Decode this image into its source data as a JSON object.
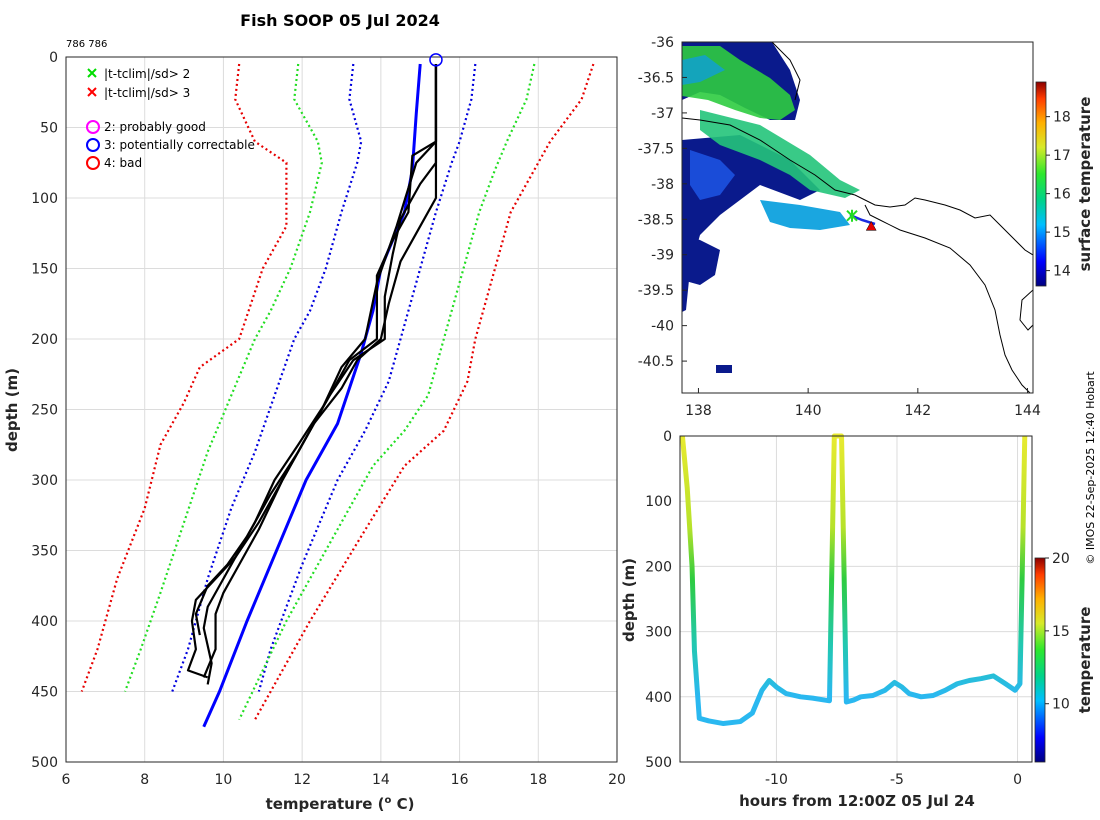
{
  "chart_data": [
    {
      "id": "profile",
      "type": "line",
      "title": "Fish SOOP 05 Jul 2024",
      "subtitle": "786 786",
      "xlabel": "temperature (",
      "xlabel_sup": "o",
      "xlabel_end": " C)",
      "ylabel": "depth (m)",
      "xlim": [
        6,
        20
      ],
      "ylim": [
        0,
        500
      ],
      "y_reversed": true,
      "xticks": [
        6,
        8,
        10,
        12,
        14,
        16,
        18,
        20
      ],
      "yticks": [
        0,
        50,
        100,
        150,
        200,
        250,
        300,
        350,
        400,
        450,
        500
      ],
      "grid": true,
      "legend": {
        "items": [
          {
            "marker": "x",
            "color": "#00dd00",
            "label": "|t-tclim|/sd> 2"
          },
          {
            "marker": "x",
            "color": "#ff0000",
            "label": "|t-tclim|/sd> 3"
          },
          {
            "marker": "o",
            "color": "#ff00ff",
            "label": "2: probably good"
          },
          {
            "marker": "o",
            "color": "#0000ff",
            "label": "3: potentially correctable"
          },
          {
            "marker": "o",
            "color": "#ff0000",
            "label": "4: bad"
          }
        ]
      },
      "climatology_series": [
        {
          "name": "clim -3sd",
          "color": "#e60000",
          "style": "dotted",
          "points": [
            [
              10.4,
              5
            ],
            [
              10.3,
              30
            ],
            [
              10.8,
              60
            ],
            [
              11.6,
              75
            ],
            [
              11.6,
              120
            ],
            [
              11.0,
              150
            ],
            [
              10.7,
              175
            ],
            [
              10.4,
              200
            ],
            [
              9.4,
              220
            ],
            [
              9.0,
              245
            ],
            [
              8.4,
              275
            ],
            [
              8.0,
              320
            ],
            [
              7.3,
              370
            ],
            [
              6.8,
              420
            ],
            [
              6.4,
              450
            ]
          ]
        },
        {
          "name": "clim -2sd",
          "color": "#22dd22",
          "style": "dotted",
          "points": [
            [
              11.9,
              5
            ],
            [
              11.8,
              30
            ],
            [
              12.4,
              60
            ],
            [
              12.5,
              75
            ],
            [
              12.2,
              110
            ],
            [
              11.7,
              150
            ],
            [
              11.2,
              180
            ],
            [
              10.8,
              200
            ],
            [
              10.2,
              240
            ],
            [
              9.6,
              280
            ],
            [
              9.0,
              330
            ],
            [
              8.4,
              380
            ],
            [
              7.9,
              420
            ],
            [
              7.5,
              450
            ]
          ]
        },
        {
          "name": "clim -1sd",
          "color": "#0000dd",
          "style": "dotted",
          "points": [
            [
              13.3,
              5
            ],
            [
              13.2,
              30
            ],
            [
              13.5,
              60
            ],
            [
              13.4,
              75
            ],
            [
              13.0,
              110
            ],
            [
              12.6,
              150
            ],
            [
              12.2,
              180
            ],
            [
              11.8,
              200
            ],
            [
              11.3,
              240
            ],
            [
              10.8,
              280
            ],
            [
              10.2,
              320
            ],
            [
              9.6,
              370
            ],
            [
              9.1,
              420
            ],
            [
              8.7,
              450
            ]
          ]
        },
        {
          "name": "clim +1sd",
          "color": "#0000dd",
          "style": "dotted",
          "points": [
            [
              16.4,
              5
            ],
            [
              16.3,
              30
            ],
            [
              16.0,
              60
            ],
            [
              15.8,
              75
            ],
            [
              15.4,
              110
            ],
            [
              15.0,
              150
            ],
            [
              14.6,
              190
            ],
            [
              14.2,
              230
            ],
            [
              13.6,
              265
            ],
            [
              12.9,
              300
            ],
            [
              12.0,
              360
            ],
            [
              11.2,
              420
            ],
            [
              10.9,
              450
            ]
          ]
        },
        {
          "name": "clim +2sd",
          "color": "#22dd22",
          "style": "dotted",
          "points": [
            [
              17.9,
              5
            ],
            [
              17.7,
              30
            ],
            [
              17.2,
              60
            ],
            [
              16.9,
              80
            ],
            [
              16.5,
              110
            ],
            [
              16.0,
              160
            ],
            [
              15.6,
              200
            ],
            [
              15.2,
              240
            ],
            [
              14.6,
              265
            ],
            [
              13.8,
              290
            ],
            [
              12.8,
              340
            ],
            [
              11.6,
              400
            ],
            [
              10.4,
              470
            ]
          ]
        },
        {
          "name": "clim +3sd",
          "color": "#e60000",
          "style": "dotted",
          "points": [
            [
              19.4,
              5
            ],
            [
              19.1,
              30
            ],
            [
              18.3,
              60
            ],
            [
              17.9,
              80
            ],
            [
              17.3,
              110
            ],
            [
              16.9,
              150
            ],
            [
              16.4,
              200
            ],
            [
              16.2,
              230
            ],
            [
              15.6,
              265
            ],
            [
              14.6,
              290
            ],
            [
              13.5,
              340
            ],
            [
              12.2,
              400
            ],
            [
              10.8,
              470
            ]
          ]
        },
        {
          "name": "clim mean",
          "color": "#0000ff",
          "style": "solid",
          "points": [
            [
              15.0,
              5
            ],
            [
              14.9,
              40
            ],
            [
              14.8,
              80
            ],
            [
              14.6,
              110
            ],
            [
              14.0,
              150
            ],
            [
              13.8,
              180
            ],
            [
              13.5,
              210
            ],
            [
              12.9,
              260
            ],
            [
              12.1,
              300
            ],
            [
              11.5,
              340
            ],
            [
              10.6,
              400
            ],
            [
              9.9,
              450
            ],
            [
              9.5,
              475
            ]
          ]
        }
      ],
      "profiles": [
        {
          "name": "cast 1",
          "color": "#000000",
          "points": [
            [
              15.4,
              5
            ],
            [
              15.4,
              60
            ],
            [
              14.8,
              70
            ],
            [
              14.7,
              110
            ],
            [
              14.3,
              130
            ],
            [
              13.9,
              155
            ],
            [
              13.9,
              175
            ],
            [
              13.9,
              200
            ],
            [
              13.2,
              215
            ],
            [
              12.6,
              245
            ],
            [
              11.9,
              275
            ],
            [
              11.3,
              300
            ],
            [
              10.8,
              330
            ],
            [
              10.3,
              355
            ],
            [
              9.9,
              375
            ],
            [
              9.6,
              390
            ],
            [
              9.5,
              405
            ],
            [
              9.7,
              430
            ],
            [
              9.6,
              445
            ]
          ]
        },
        {
          "name": "cast 2",
          "color": "#000000",
          "points": [
            [
              15.4,
              5
            ],
            [
              15.4,
              75
            ],
            [
              15.0,
              90
            ],
            [
              14.5,
              115
            ],
            [
              14.3,
              140
            ],
            [
              14.1,
              170
            ],
            [
              14.1,
              200
            ],
            [
              13.3,
              215
            ],
            [
              12.7,
              240
            ],
            [
              12.1,
              270
            ],
            [
              11.5,
              300
            ],
            [
              10.9,
              335
            ],
            [
              10.4,
              360
            ],
            [
              10.0,
              380
            ],
            [
              9.8,
              395
            ],
            [
              9.8,
              420
            ],
            [
              9.5,
              440
            ]
          ]
        },
        {
          "name": "cast 3",
          "color": "#000000",
          "points": [
            [
              15.4,
              5
            ],
            [
              15.4,
              100
            ],
            [
              15.0,
              120
            ],
            [
              14.5,
              145
            ],
            [
              14.2,
              175
            ],
            [
              14.0,
              200
            ],
            [
              13.4,
              215
            ],
            [
              13.0,
              235
            ],
            [
              12.3,
              260
            ],
            [
              11.6,
              295
            ],
            [
              10.9,
              330
            ],
            [
              10.3,
              355
            ],
            [
              9.8,
              370
            ],
            [
              9.3,
              385
            ],
            [
              9.2,
              400
            ],
            [
              9.3,
              420
            ],
            [
              9.1,
              435
            ],
            [
              9.6,
              440
            ]
          ]
        },
        {
          "name": "cast 4",
          "color": "#000000",
          "points": [
            [
              15.4,
              5
            ],
            [
              15.4,
              60
            ],
            [
              14.9,
              75
            ],
            [
              14.4,
              120
            ],
            [
              13.9,
              160
            ],
            [
              13.6,
              200
            ],
            [
              13.0,
              220
            ],
            [
              12.5,
              250
            ],
            [
              11.9,
              280
            ],
            [
              11.2,
              310
            ],
            [
              10.6,
              340
            ],
            [
              10.1,
              360
            ],
            [
              9.6,
              375
            ],
            [
              9.3,
              395
            ],
            [
              9.4,
              410
            ]
          ]
        }
      ],
      "surface_marker": {
        "x": 15.4,
        "y": 2,
        "color": "#0000ff"
      }
    },
    {
      "id": "map",
      "type": "heatmap",
      "xticks": [
        138,
        140,
        142,
        144
      ],
      "yticks": [
        -36,
        -36.5,
        -37,
        -37.5,
        -38,
        -38.5,
        -39,
        -39.5,
        -40,
        -40.5
      ],
      "xlim": [
        137.7,
        144.1
      ],
      "ylim": [
        -40.95,
        -36
      ],
      "colorbar": {
        "label": "surface temperature",
        "ticks": [
          14,
          15,
          16,
          17,
          18
        ],
        "min": 13.6,
        "max": 18.9
      },
      "track_markers": [
        {
          "lon": 140.8,
          "lat": -38.45,
          "symbol": "star",
          "color": "#22dd22"
        },
        {
          "lon": 141.15,
          "lat": -38.6,
          "symbol": "triangle",
          "color": "#e60000"
        }
      ]
    },
    {
      "id": "timeseries",
      "type": "line",
      "xlabel": "hours from 12:00Z 05 Jul 24",
      "ylabel": "depth (m)",
      "xlim": [
        -14,
        0.6
      ],
      "ylim": [
        0,
        500
      ],
      "y_reversed": true,
      "xticks": [
        -10,
        -5,
        0
      ],
      "yticks": [
        0,
        100,
        200,
        300,
        400,
        500
      ],
      "colorbar": {
        "label": "temperature",
        "ticks": [
          10,
          15,
          20
        ],
        "min": 6,
        "max": 20
      },
      "track": [
        [
          -13.9,
          0
        ],
        [
          -13.7,
          80
        ],
        [
          -13.5,
          200
        ],
        [
          -13.4,
          330
        ],
        [
          -13.2,
          433
        ],
        [
          -12.8,
          437
        ],
        [
          -12.2,
          441
        ],
        [
          -11.5,
          438
        ],
        [
          -11.0,
          425
        ],
        [
          -10.6,
          390
        ],
        [
          -10.3,
          375
        ],
        [
          -10.0,
          385
        ],
        [
          -9.6,
          395
        ],
        [
          -9.0,
          400
        ],
        [
          -8.5,
          402
        ],
        [
          -8.0,
          405
        ],
        [
          -7.8,
          406
        ],
        [
          -7.7,
          200
        ],
        [
          -7.6,
          0
        ],
        [
          -7.5,
          0
        ],
        [
          -7.3,
          0
        ],
        [
          -7.2,
          200
        ],
        [
          -7.1,
          408
        ],
        [
          -6.8,
          405
        ],
        [
          -6.5,
          400
        ],
        [
          -6.0,
          398
        ],
        [
          -5.5,
          390
        ],
        [
          -5.1,
          378
        ],
        [
          -4.8,
          385
        ],
        [
          -4.5,
          395
        ],
        [
          -4.0,
          400
        ],
        [
          -3.5,
          398
        ],
        [
          -3.0,
          390
        ],
        [
          -2.5,
          380
        ],
        [
          -2.0,
          375
        ],
        [
          -1.5,
          372
        ],
        [
          -1.0,
          368
        ],
        [
          -0.5,
          380
        ],
        [
          -0.1,
          390
        ],
        [
          0.1,
          380
        ],
        [
          0.2,
          200
        ],
        [
          0.3,
          0
        ]
      ]
    }
  ],
  "credit": "© IMOS 22-Sep-2025 12:40 Hobart"
}
